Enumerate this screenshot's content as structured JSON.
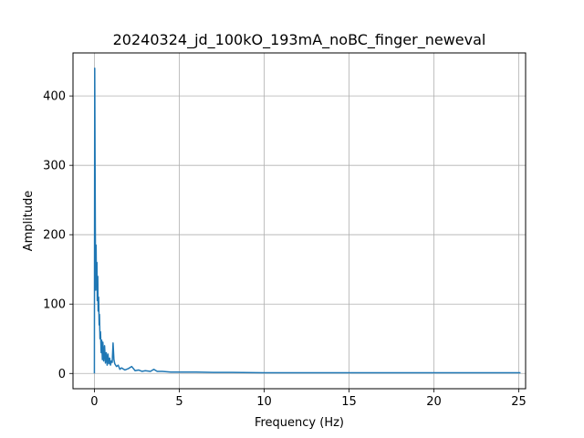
{
  "chart_data": {
    "type": "line",
    "title": "20240324_jd_100kO_193mA_noBC_finger_neweval",
    "xlabel": "Frequency (Hz)",
    "ylabel": "Amplitude",
    "xlim": [
      -1.26,
      25.4
    ],
    "ylim": [
      -22,
      462
    ],
    "xticks": [
      0,
      5,
      10,
      15,
      20,
      25
    ],
    "yticks": [
      0,
      100,
      200,
      300,
      400
    ],
    "grid": true,
    "series": [
      {
        "color": "#1f77b4",
        "points": [
          [
            0.0,
            0
          ],
          [
            0.02,
            440
          ],
          [
            0.04,
            300
          ],
          [
            0.06,
            180
          ],
          [
            0.08,
            120
          ],
          [
            0.1,
            185
          ],
          [
            0.12,
            130
          ],
          [
            0.15,
            160
          ],
          [
            0.17,
            105
          ],
          [
            0.2,
            140
          ],
          [
            0.22,
            90
          ],
          [
            0.25,
            110
          ],
          [
            0.28,
            70
          ],
          [
            0.3,
            85
          ],
          [
            0.33,
            50
          ],
          [
            0.36,
            60
          ],
          [
            0.4,
            30
          ],
          [
            0.43,
            48
          ],
          [
            0.47,
            20
          ],
          [
            0.5,
            45
          ],
          [
            0.55,
            18
          ],
          [
            0.6,
            40
          ],
          [
            0.65,
            15
          ],
          [
            0.7,
            30
          ],
          [
            0.75,
            12
          ],
          [
            0.8,
            28
          ],
          [
            0.85,
            14
          ],
          [
            0.9,
            22
          ],
          [
            0.95,
            12
          ],
          [
            1.0,
            18
          ],
          [
            1.05,
            16
          ],
          [
            1.1,
            44
          ],
          [
            1.15,
            20
          ],
          [
            1.2,
            14
          ],
          [
            1.3,
            10
          ],
          [
            1.4,
            12
          ],
          [
            1.5,
            6
          ],
          [
            1.6,
            8
          ],
          [
            1.8,
            5
          ],
          [
            2.0,
            7
          ],
          [
            2.2,
            10
          ],
          [
            2.4,
            4
          ],
          [
            2.6,
            5
          ],
          [
            2.8,
            3
          ],
          [
            3.0,
            4
          ],
          [
            3.3,
            3
          ],
          [
            3.5,
            6
          ],
          [
            3.7,
            3
          ],
          [
            4.0,
            3
          ],
          [
            4.5,
            2
          ],
          [
            5.0,
            2
          ],
          [
            6.0,
            2
          ],
          [
            7.0,
            1.5
          ],
          [
            8.0,
            1.5
          ],
          [
            10.0,
            1
          ],
          [
            12.5,
            1
          ],
          [
            15.0,
            1
          ],
          [
            17.5,
            1
          ],
          [
            20.0,
            1
          ],
          [
            22.5,
            1
          ],
          [
            25.1,
            1
          ]
        ]
      }
    ]
  }
}
